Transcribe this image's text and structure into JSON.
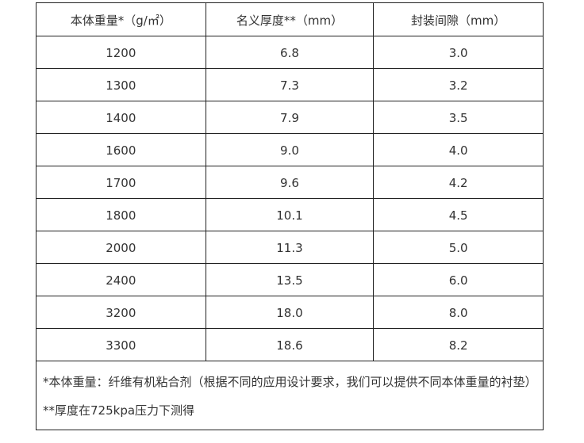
{
  "table": {
    "headers": [
      "本体重量*（g/㎡）",
      "名义厚度**（mm）",
      "封装间隙（mm）"
    ],
    "rows": [
      [
        "1200",
        "6.8",
        "3.0"
      ],
      [
        "1300",
        "7.3",
        "3.2"
      ],
      [
        "1400",
        "7.9",
        "3.5"
      ],
      [
        "1600",
        "9.0",
        "4.0"
      ],
      [
        "1700",
        "9.6",
        "4.2"
      ],
      [
        "1800",
        "10.1",
        "4.5"
      ],
      [
        "2000",
        "11.3",
        "5.0"
      ],
      [
        "2400",
        "13.5",
        "6.0"
      ],
      [
        "3200",
        "18.0",
        "8.0"
      ],
      [
        "3300",
        "18.6",
        "8.2"
      ]
    ],
    "notes": [
      "*本体重量：纤维有机粘合剂（根据不同的应用设计要求，我们可以提供不同本体重量的衬垫）",
      "**厚度在725kpa压力下测得"
    ]
  }
}
